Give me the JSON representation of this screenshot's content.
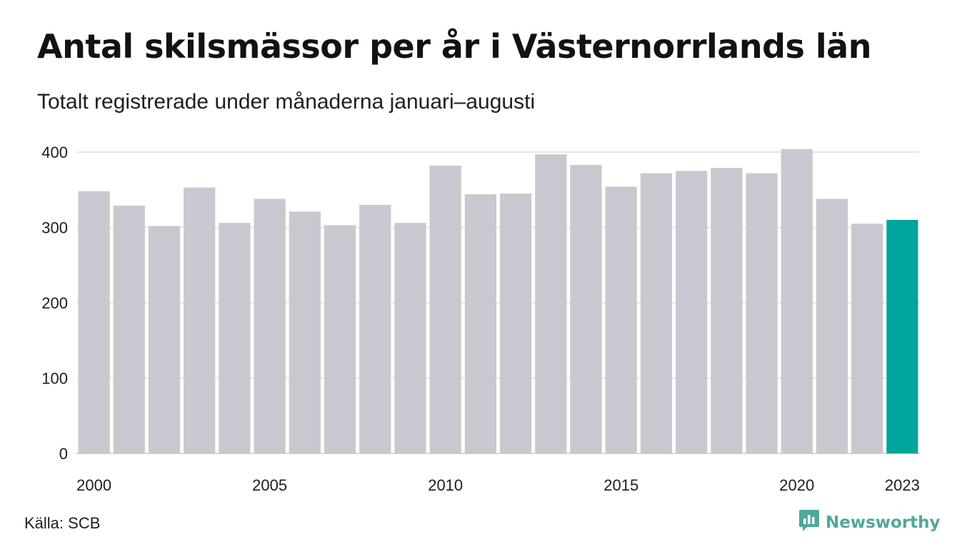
{
  "title": "Antal skilsmässor per år i Västernorrlands län",
  "subtitle": "Totalt registrerade under månaderna januari–augusti",
  "source": "Källa: SCB",
  "brand": {
    "name": "Newsworthy",
    "icon": "newsworthy-logo-icon",
    "color": "#4fa89a"
  },
  "colors": {
    "bar": "#c9c8d0",
    "highlight": "#00a69b",
    "grid": "#e6e6ea",
    "axis": "#d5d5da"
  },
  "chart_data": {
    "type": "bar",
    "categories": [
      "2000",
      "2001",
      "2002",
      "2003",
      "2004",
      "2005",
      "2006",
      "2007",
      "2008",
      "2009",
      "2010",
      "2011",
      "2012",
      "2013",
      "2014",
      "2015",
      "2016",
      "2017",
      "2018",
      "2019",
      "2020",
      "2021",
      "2022",
      "2023"
    ],
    "values": [
      348,
      329,
      302,
      353,
      306,
      338,
      321,
      303,
      330,
      306,
      382,
      344,
      345,
      397,
      383,
      354,
      372,
      375,
      379,
      372,
      404,
      338,
      305,
      310
    ],
    "highlight_category": "2023",
    "x_tick_labels": [
      "2000",
      "2005",
      "2010",
      "2015",
      "2020",
      "2023"
    ],
    "y_ticks": [
      0,
      100,
      200,
      300,
      400
    ],
    "ylim": [
      0,
      400
    ],
    "grid": true,
    "legend": "none",
    "xlabel": "",
    "ylabel": ""
  }
}
